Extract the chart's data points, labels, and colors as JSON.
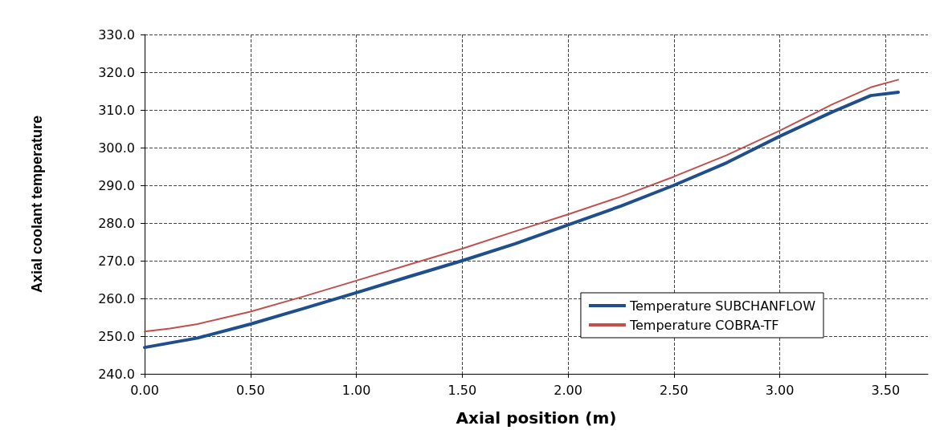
{
  "chart_data": {
    "type": "line",
    "xlabel": "Axial position (m)",
    "ylabel": "Axial coolant temperature",
    "xlim": [
      0,
      3.7
    ],
    "xticks": [
      {
        "value": 0,
        "label": "0.00"
      },
      {
        "value": 0.5,
        "label": "0.50"
      },
      {
        "value": 1,
        "label": "1.00"
      },
      {
        "value": 1.5,
        "label": "1.50"
      },
      {
        "value": 2,
        "label": "2.00"
      },
      {
        "value": 2.5,
        "label": "2.50"
      },
      {
        "value": 3,
        "label": "3.00"
      },
      {
        "value": 3.5,
        "label": "3.50"
      }
    ],
    "ylim": [
      240,
      330
    ],
    "yticks": [
      {
        "value": 240,
        "label": "240.0"
      },
      {
        "value": 250,
        "label": "250.0"
      },
      {
        "value": 260,
        "label": "260.0"
      },
      {
        "value": 270,
        "label": "270.0"
      },
      {
        "value": 280,
        "label": "280.0"
      },
      {
        "value": 290,
        "label": "290.0"
      },
      {
        "value": 300,
        "label": "300.0"
      },
      {
        "value": 310,
        "label": "310.0"
      },
      {
        "value": 320,
        "label": "320.0"
      },
      {
        "value": 330,
        "label": "330.0"
      }
    ],
    "grid": true,
    "legend": "bottom right",
    "marker": "none",
    "line_style": "solid",
    "series": [
      {
        "name": "Temperature SUBCHANFLOW",
        "color": "#1f4e8c",
        "x": [
          0,
          0.25,
          0.5,
          0.75,
          1.0,
          1.25,
          1.5,
          1.75,
          2.0,
          2.25,
          2.5,
          2.75,
          3.0,
          3.25,
          3.43,
          3.56
        ],
        "values": [
          247,
          249.5,
          253.2,
          257.3,
          261.5,
          265.8,
          270,
          274.5,
          279.5,
          284.5,
          290,
          296,
          303,
          309.5,
          313.8,
          314.7
        ]
      },
      {
        "name": "Temperature COBRA-TF",
        "color": "#c0504d",
        "x": [
          0,
          0.12,
          0.25,
          0.5,
          0.75,
          1.0,
          1.25,
          1.5,
          1.75,
          2.0,
          2.25,
          2.5,
          2.75,
          3.0,
          3.25,
          3.43,
          3.56
        ],
        "values": [
          251.2,
          252,
          253.2,
          256.5,
          260.5,
          264.7,
          269,
          273.2,
          277.8,
          282.3,
          287,
          292.3,
          298,
          304.5,
          311.5,
          316,
          318
        ]
      }
    ]
  }
}
